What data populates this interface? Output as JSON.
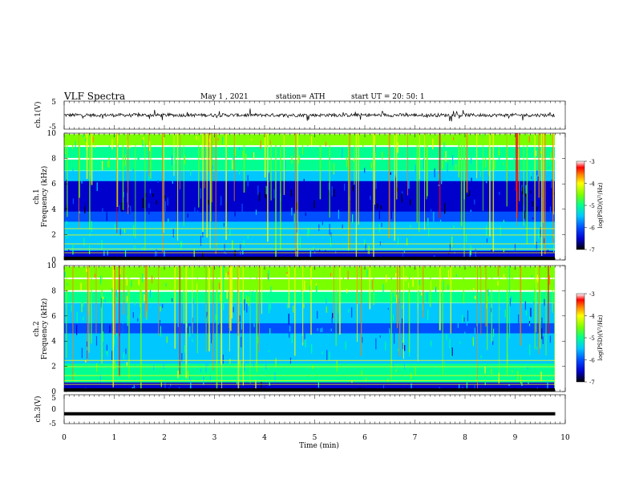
{
  "header": {
    "title": "VLF  Spectra",
    "date": "May 1  , 2021",
    "station": "station= ATH",
    "start": "start  UT  =   20: 50: 1"
  },
  "colors": {
    "background": "#ffffff",
    "trace": "#000000",
    "colormap": [
      "#000000",
      "#0000cc",
      "#0050ff",
      "#00c8ff",
      "#00ff90",
      "#7aff00",
      "#ffff00",
      "#ff8000",
      "#ff0000",
      "#ffffff"
    ]
  },
  "chart_data": [
    {
      "type": "line",
      "panel": "ch1-waveform",
      "ylabel": "ch.1(V)",
      "ylim": [
        -5,
        5
      ],
      "yticks": [
        "5",
        "-5"
      ],
      "xlim": [
        0,
        10
      ],
      "x_end": 9.8,
      "description_values": {
        "approx_level": 0.0,
        "approx_amplitude": 1.0
      }
    },
    {
      "type": "heatmap",
      "panel": "ch1-spectrogram",
      "ylabel": "ch.1  Frequency (kHz)",
      "ylabel_parts": [
        "ch.1",
        "Frequency  (kHz)"
      ],
      "ylim": [
        0,
        10
      ],
      "yticks": [
        "0",
        "2",
        "4",
        "6",
        "8",
        "10"
      ],
      "xlim": [
        0,
        10
      ],
      "x_end": 9.8,
      "colorbar": {
        "label": "log(PSD)(V²/Hz)",
        "range": [
          -7,
          -3
        ],
        "ticks": [
          "-3",
          "-4",
          "-5",
          "-6",
          "-7"
        ]
      }
    },
    {
      "type": "heatmap",
      "panel": "ch2-spectrogram",
      "ylabel": "ch.2  Frequency (kHz)",
      "ylabel_parts": [
        "ch.2",
        "Frequency  (kHz)"
      ],
      "ylim": [
        0,
        10
      ],
      "yticks": [
        "0",
        "2",
        "4",
        "6",
        "8",
        "10"
      ],
      "xlim": [
        0,
        10
      ],
      "x_end": 9.8,
      "colorbar": {
        "label": "log(PSD)(V²/Hz)",
        "range": [
          -7,
          -3
        ],
        "ticks": [
          "-3",
          "-4",
          "-5",
          "-6",
          "-7"
        ]
      }
    },
    {
      "type": "line",
      "panel": "ch3-waveform",
      "ylabel": "ch.3(V)",
      "ylim": [
        -5,
        5
      ],
      "yticks": [
        "5",
        "0",
        "-5"
      ],
      "xlim": [
        0,
        10
      ],
      "x_end": 9.8,
      "description_values": {
        "approx_level": -1.6
      }
    }
  ],
  "xaxis": {
    "label": "Time  (min)",
    "ticks": [
      "0",
      "1",
      "2",
      "3",
      "4",
      "5",
      "6",
      "7",
      "8",
      "9",
      "10"
    ]
  }
}
